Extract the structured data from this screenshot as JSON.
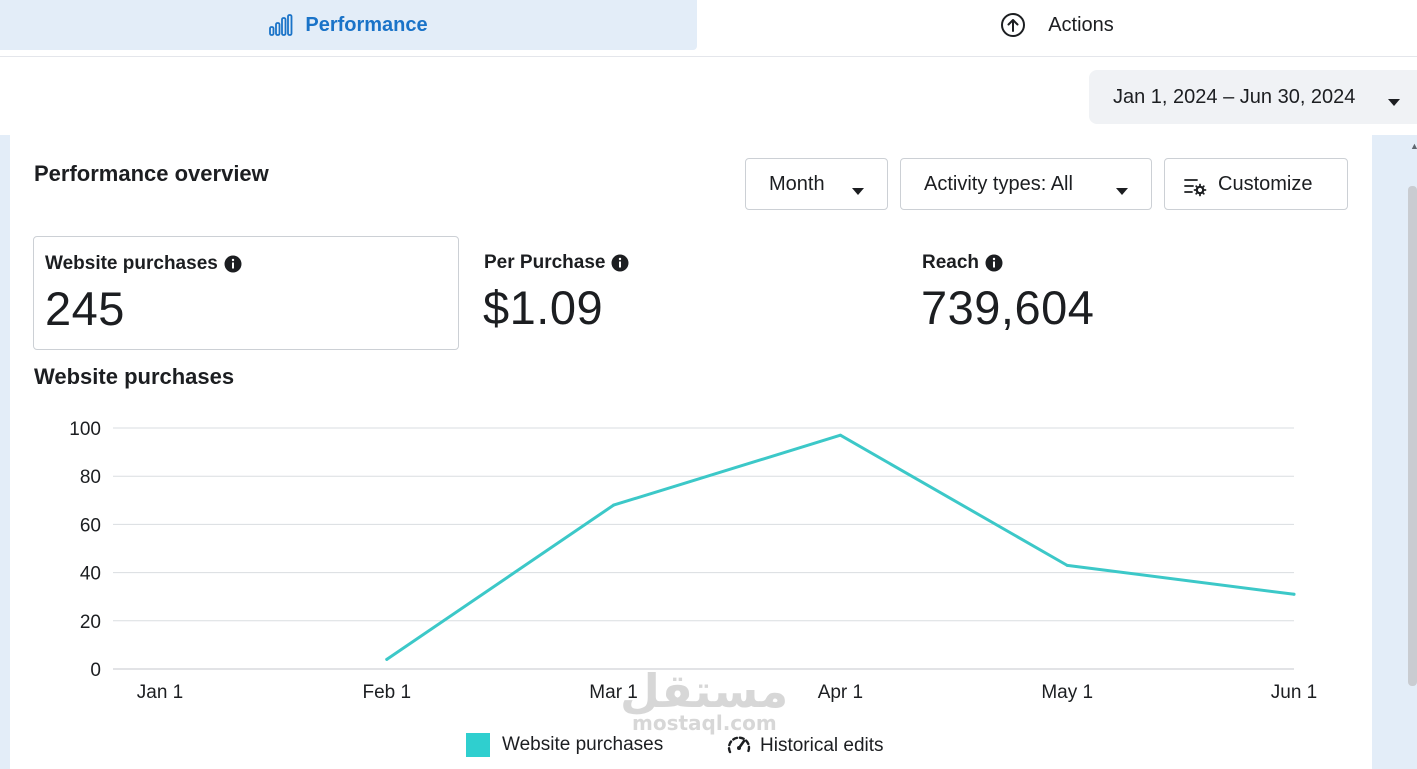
{
  "tabs": {
    "performance": "Performance",
    "actions": "Actions"
  },
  "date_range": "Jan 1, 2024 – Jun 30, 2024",
  "overview": {
    "title": "Performance overview",
    "controls": {
      "month": "Month",
      "activity": "Activity types: All",
      "customize": "Customize"
    }
  },
  "metrics": [
    {
      "label": "Website purchases",
      "value": "245"
    },
    {
      "label": "Per Purchase",
      "value": "$1.09"
    },
    {
      "label": "Reach",
      "value": "739,604"
    }
  ],
  "chart_section_title": "Website purchases",
  "legend": {
    "series": "Website purchases",
    "historical": "Historical edits"
  },
  "watermark": {
    "arabic": "مستقل",
    "latin": "mostaql.com"
  },
  "colors": {
    "accent_blue": "#1a73c8",
    "tab_active_bg": "#e3edf8",
    "series_line": "#3cc8c8",
    "legend_swatch": "#2fcfcf",
    "grid": "#dadde1"
  },
  "chart_data": {
    "type": "line",
    "x": [
      "Jan 1",
      "Feb 1",
      "Mar 1",
      "Apr 1",
      "May 1",
      "Jun 1"
    ],
    "series": [
      {
        "name": "Website purchases",
        "values": [
          null,
          4,
          68,
          97,
          43,
          31
        ]
      }
    ],
    "yticks": [
      0,
      20,
      40,
      60,
      80,
      100
    ],
    "ylim": [
      0,
      100
    ],
    "grid": true,
    "legend": "bottom-center"
  }
}
